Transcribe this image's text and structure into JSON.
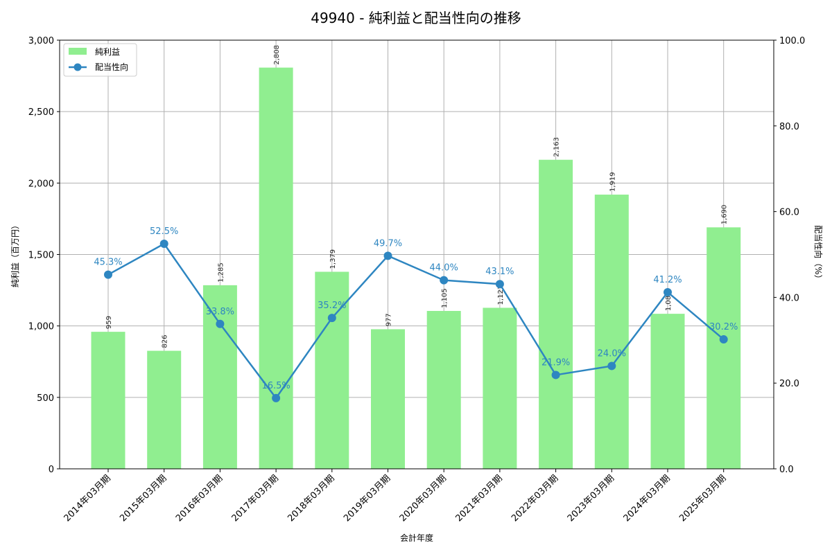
{
  "title": "49940 - 純利益と配当性向の推移",
  "colors": {
    "bar": "#90ee90",
    "line": "#2e86c1",
    "grid": "#b0b0b0",
    "axis": "#000000"
  },
  "legend": {
    "bar_label": "純利益",
    "line_label": "配当性向"
  },
  "axes": {
    "xlabel": "会計年度",
    "ylabel_left": "純利益（百万円）",
    "ylabel_right": "配当性向（%）",
    "left_ticks": [
      "0",
      "500",
      "1,000",
      "1,500",
      "2,000",
      "2,500",
      "3,000"
    ],
    "right_ticks": [
      "0.0",
      "20.0",
      "40.0",
      "60.0",
      "80.0",
      "100.0"
    ]
  },
  "chart_data": {
    "type": "bar+line",
    "title": "49940 - 純利益と配当性向の推移",
    "xlabel": "会計年度",
    "categories": [
      "2014年03月期",
      "2015年03月期",
      "2016年03月期",
      "2017年03月期",
      "2018年03月期",
      "2019年03月期",
      "2020年03月期",
      "2021年03月期",
      "2022年03月期",
      "2023年03月期",
      "2024年03月期",
      "2025年03月期"
    ],
    "series": [
      {
        "name": "純利益",
        "type": "bar",
        "axis": "left",
        "ylabel": "純利益（百万円）",
        "ylim": [
          0,
          3000
        ],
        "values": [
          959,
          826,
          1285,
          2808,
          1379,
          977,
          1105,
          1127,
          2163,
          1919,
          1085,
          1690
        ],
        "labels": [
          "959",
          "826",
          "1,285",
          "2,808",
          "1,379",
          "977",
          "1,105",
          "1,127",
          "2,163",
          "1,919",
          "1,085",
          "1,690"
        ]
      },
      {
        "name": "配当性向",
        "type": "line",
        "axis": "right",
        "ylabel": "配当性向（%）",
        "ylim": [
          0,
          100
        ],
        "values": [
          45.3,
          52.5,
          33.8,
          16.5,
          35.2,
          49.7,
          44.0,
          43.1,
          21.9,
          24.0,
          41.2,
          30.2
        ],
        "labels": [
          "45.3%",
          "52.5%",
          "33.8%",
          "16.5%",
          "35.2%",
          "49.7%",
          "44.0%",
          "43.1%",
          "21.9%",
          "24.0%",
          "41.2%",
          "30.2%"
        ]
      }
    ],
    "grid": true,
    "legend_position": "upper left"
  }
}
